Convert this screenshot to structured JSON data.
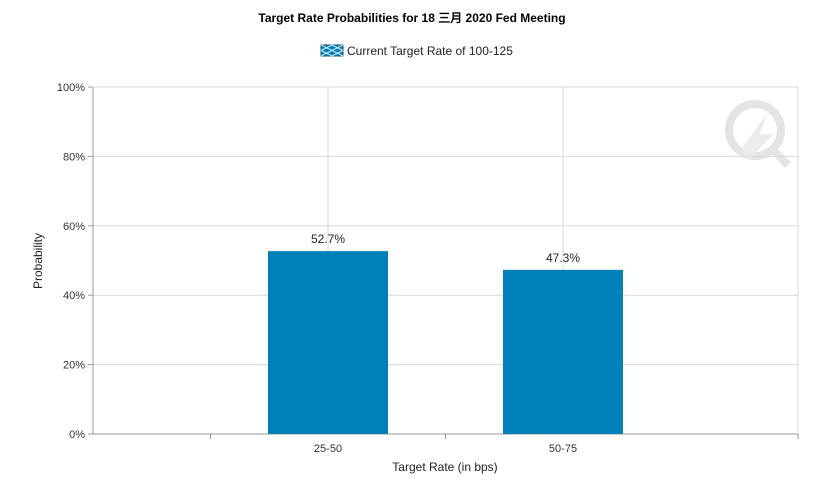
{
  "chart_data": {
    "type": "bar",
    "title": "Target Rate Probabilities for 18 三月 2020 Fed Meeting",
    "legend": "Current Target Rate of 100-125",
    "legend_position": "top-center",
    "xlabel": "Target Rate (in bps)",
    "ylabel": "Probability",
    "categories": [
      "25-50",
      "50-75"
    ],
    "values": [
      52.7,
      47.3
    ],
    "data_labels": [
      "52.7%",
      "47.3%"
    ],
    "ylim": [
      0,
      100
    ],
    "yticks": [
      "0%",
      "20%",
      "40%",
      "60%",
      "80%",
      "100%"
    ],
    "grid": true,
    "bar_color": "#0080bb"
  }
}
